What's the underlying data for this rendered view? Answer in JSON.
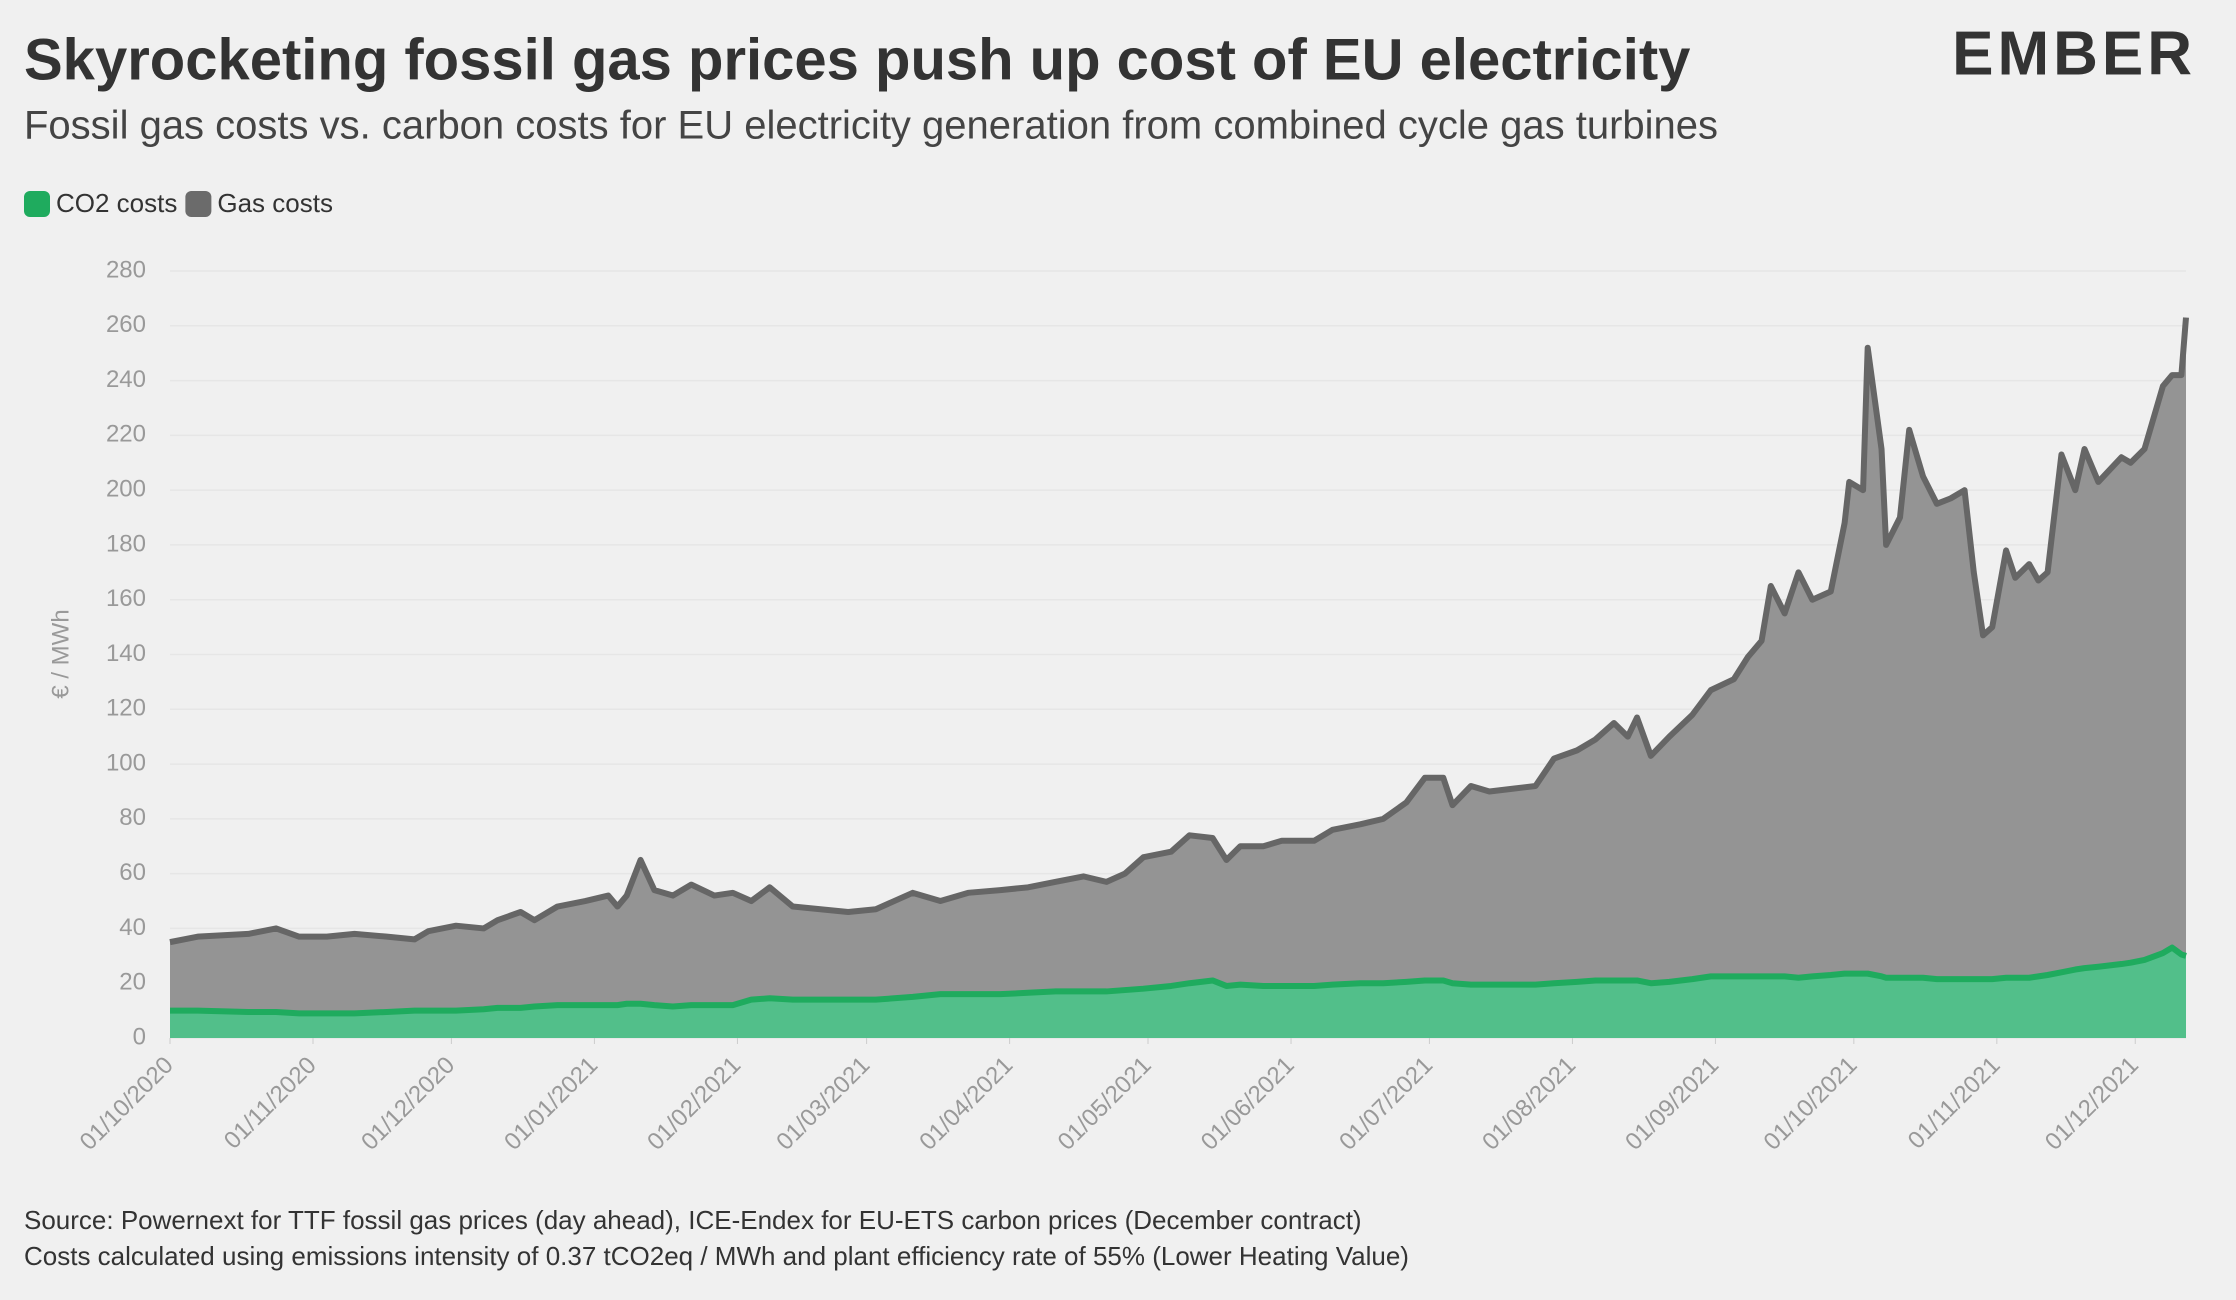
{
  "chart_data": {
    "type": "stacked_area",
    "title": "Skyrocketing fossil gas prices push up cost of EU electricity",
    "subtitle": "Fossil gas costs vs. carbon costs for EU electricity generation from combined cycle gas turbines",
    "logo": "EMBER",
    "y_axis_label": "€ / MWh",
    "source": "Source: Powernext for TTF fossil gas prices (day ahead), ICE-Endex for EU-ETS carbon prices (December contract)",
    "note": "Costs calculated using emissions intensity of 0.37 tCO2eq / MWh and plant efficiency rate of 55% (Lower Heating Value)",
    "legend": "top-left",
    "grid": true,
    "ylim": [
      0,
      280
    ],
    "yticks": [
      0,
      20,
      40,
      60,
      80,
      100,
      120,
      140,
      160,
      180,
      200,
      220,
      240,
      260,
      280
    ],
    "xlim": [
      "01/10/2020",
      "12/12/2021"
    ],
    "xticks": [
      "01/10/2020",
      "01/11/2020",
      "01/12/2020",
      "01/01/2021",
      "01/02/2021",
      "01/03/2021",
      "01/04/2021",
      "01/05/2021",
      "01/06/2021",
      "01/07/2021",
      "01/08/2021",
      "01/09/2021",
      "01/10/2021",
      "01/11/2021",
      "01/12/2021"
    ],
    "x": [
      "01/10/2020",
      "07/10/2020",
      "18/10/2020",
      "24/10/2020",
      "29/10/2020",
      "04/11/2020",
      "10/11/2020",
      "17/11/2020",
      "23/11/2020",
      "26/11/2020",
      "02/12/2020",
      "08/12/2020",
      "11/12/2020",
      "16/12/2020",
      "19/12/2020",
      "24/12/2020",
      "30/12/2020",
      "04/01/2021",
      "06/01/2021",
      "08/01/2021",
      "11/01/2021",
      "14/01/2021",
      "18/01/2021",
      "22/01/2021",
      "27/01/2021",
      "31/01/2021",
      "04/02/2021",
      "08/02/2021",
      "13/02/2021",
      "19/02/2021",
      "25/02/2021",
      "03/03/2021",
      "11/03/2021",
      "17/03/2021",
      "23/03/2021",
      "30/03/2021",
      "05/04/2021",
      "11/04/2021",
      "17/04/2021",
      "22/04/2021",
      "26/04/2021",
      "30/04/2021",
      "06/05/2021",
      "10/05/2021",
      "15/05/2021",
      "18/05/2021",
      "21/05/2021",
      "26/05/2021",
      "30/05/2021",
      "06/06/2021",
      "10/06/2021",
      "16/06/2021",
      "21/06/2021",
      "26/06/2021",
      "30/06/2021",
      "04/07/2021",
      "06/07/2021",
      "10/07/2021",
      "14/07/2021",
      "19/07/2021",
      "24/07/2021",
      "28/07/2021",
      "02/08/2021",
      "06/08/2021",
      "10/08/2021",
      "13/08/2021",
      "15/08/2021",
      "18/08/2021",
      "22/08/2021",
      "27/08/2021",
      "31/08/2021",
      "05/09/2021",
      "08/09/2021",
      "11/09/2021",
      "13/09/2021",
      "16/09/2021",
      "19/09/2021",
      "22/09/2021",
      "26/09/2021",
      "29/09/2021",
      "30/09/2021",
      "03/10/2021",
      "04/10/2021",
      "07/10/2021",
      "08/10/2021",
      "11/10/2021",
      "13/10/2021",
      "16/10/2021",
      "19/10/2021",
      "22/10/2021",
      "25/10/2021",
      "27/10/2021",
      "29/10/2021",
      "31/10/2021",
      "03/11/2021",
      "05/11/2021",
      "08/11/2021",
      "10/11/2021",
      "12/11/2021",
      "15/11/2021",
      "18/11/2021",
      "20/11/2021",
      "23/11/2021",
      "28/11/2021",
      "30/11/2021",
      "03/12/2021",
      "07/12/2021",
      "09/12/2021",
      "11/12/2021",
      "12/12/2021"
    ],
    "series": [
      {
        "name": "CO2 costs",
        "color": "#52bf8a",
        "line_color": "#1fab5e",
        "values": [
          10,
          10,
          9.5,
          9.5,
          9,
          9,
          9,
          9.5,
          10,
          10,
          10,
          10.5,
          11,
          11,
          11.5,
          12,
          12,
          12,
          12,
          12.5,
          12.5,
          12,
          11.5,
          12,
          12,
          12,
          14,
          14.5,
          14,
          14,
          14,
          14,
          15,
          16,
          16,
          16,
          16.5,
          17,
          17,
          17,
          17.5,
          18,
          19,
          20,
          21,
          19,
          19.5,
          19,
          19,
          19,
          19.5,
          20,
          20,
          20.5,
          21,
          21,
          20,
          19.5,
          19.5,
          19.5,
          19.5,
          20,
          20.5,
          21,
          21,
          21,
          21,
          20,
          20.5,
          21.5,
          22.5,
          22.5,
          22.5,
          22.5,
          22.5,
          22.5,
          22,
          22.5,
          23,
          23.5,
          23.5,
          23.5,
          23.5,
          22.5,
          22,
          22,
          22,
          22,
          21.5,
          21.5,
          21.5,
          21.5,
          21.5,
          21.5,
          22,
          22,
          22,
          22.5,
          23,
          24,
          25,
          25.5,
          26,
          27,
          27.5,
          28.5,
          31,
          33,
          30.5,
          30
        ]
      },
      {
        "name": "Gas costs",
        "color": "#949494",
        "line_color": "#666666",
        "values": [
          25,
          27,
          28.5,
          30.5,
          28,
          28,
          29,
          27.5,
          26,
          29,
          31,
          29.5,
          32,
          35,
          31.5,
          36,
          38,
          40,
          36,
          39.5,
          52.5,
          42,
          40.5,
          44,
          40,
          41,
          36,
          40.5,
          34,
          33,
          32,
          33,
          38,
          34,
          37,
          38,
          38.5,
          40,
          42,
          40,
          42.5,
          48,
          49,
          54,
          52,
          46,
          50.5,
          51,
          53,
          53,
          56.5,
          58,
          60,
          65.5,
          74,
          74,
          65,
          72.5,
          70.5,
          71.5,
          72.5,
          82,
          84.5,
          88,
          94,
          89,
          96,
          83,
          89.5,
          96.5,
          104.5,
          108.5,
          116.5,
          122.5,
          142.5,
          132.5,
          148,
          137.5,
          140,
          164.5,
          179.5,
          176.5,
          228.5,
          192.5,
          158,
          168,
          200,
          183,
          173.5,
          175.5,
          178.5,
          148.5,
          125.5,
          128.5,
          156,
          146,
          151,
          144.5,
          147,
          189,
          175,
          189.5,
          177,
          185,
          182.5,
          186.5,
          207,
          209,
          211.5,
          233
        ]
      }
    ]
  }
}
